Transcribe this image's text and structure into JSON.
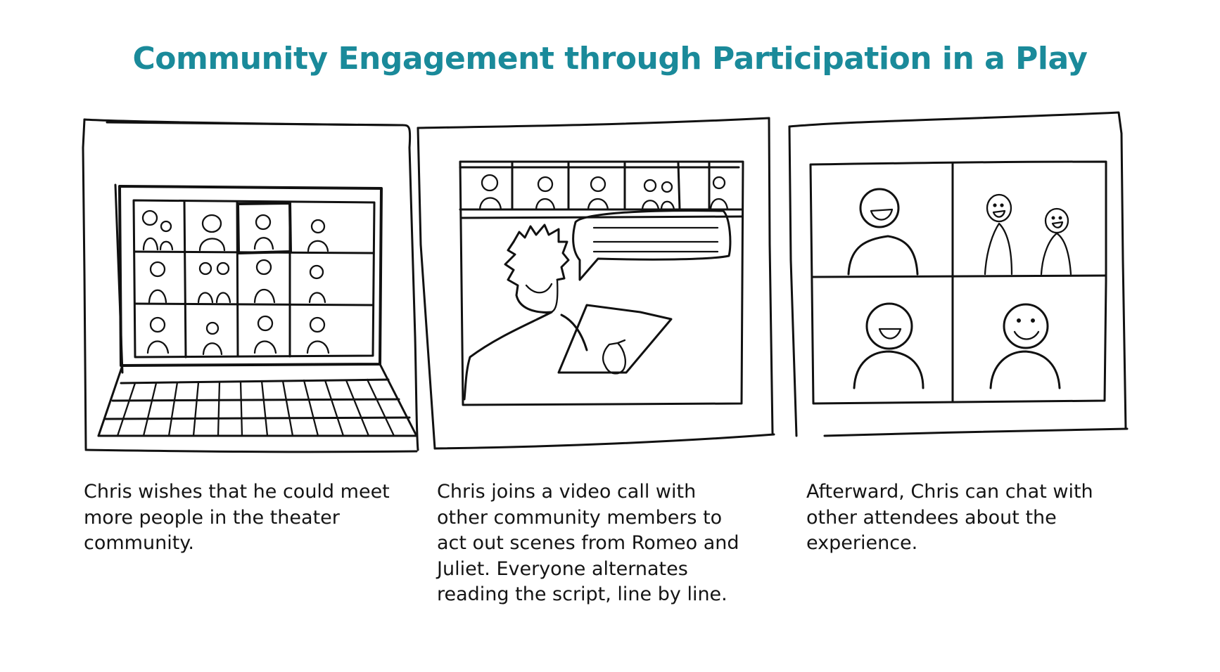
{
  "title": "Community Engagement through Participation in a Play",
  "colors": {
    "title": "#1a8a9a",
    "ink": "#111111",
    "background": "#ffffff"
  },
  "panels": [
    {
      "caption": "Chris wishes that he could meet more people in the theater community."
    },
    {
      "caption": "Chris joins a video call with other community members to act out scenes from Romeo and Juliet. Everyone alternates reading the script, line by line."
    },
    {
      "caption": "Afterward, Chris can chat with other attendees about the experience."
    }
  ]
}
